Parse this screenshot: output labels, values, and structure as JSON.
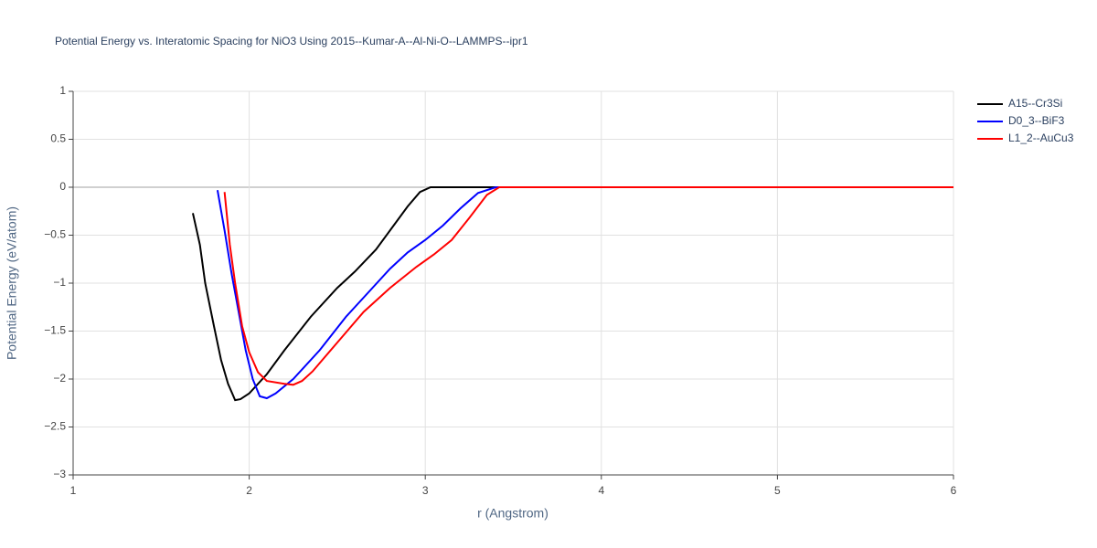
{
  "chart_data": {
    "type": "line",
    "title": "Potential Energy vs. Interatomic Spacing for NiO3 Using 2015--Kumar-A--Al-Ni-O--LAMMPS--ipr1",
    "x_label": "r (Angstrom)",
    "y_label": "Potential Energy (eV/atom)",
    "xlim": [
      1,
      6
    ],
    "ylim": [
      -3,
      1
    ],
    "xticks": [
      1,
      2,
      3,
      4,
      5,
      6
    ],
    "yticks": [
      {
        "value": -3,
        "label": "−3"
      },
      {
        "value": -2.5,
        "label": "−2.5"
      },
      {
        "value": -2,
        "label": "−2"
      },
      {
        "value": -1.5,
        "label": "−1.5"
      },
      {
        "value": -1,
        "label": "−1"
      },
      {
        "value": -0.5,
        "label": "−0.5"
      },
      0,
      0.5,
      1
    ],
    "grid": true,
    "legend": "right",
    "series": [
      {
        "name": "A15--Cr3Si",
        "color": "#000000",
        "x": [
          1.68,
          1.72,
          1.75,
          1.8,
          1.84,
          1.88,
          1.92,
          1.95,
          2.0,
          2.1,
          2.2,
          2.35,
          2.5,
          2.6,
          2.72,
          2.8,
          2.9,
          2.97,
          3.03,
          3.2,
          6
        ],
        "values": [
          -0.27,
          -0.6,
          -1.0,
          -1.45,
          -1.8,
          -2.05,
          -2.22,
          -2.21,
          -2.15,
          -1.95,
          -1.7,
          -1.35,
          -1.05,
          -0.88,
          -0.65,
          -0.45,
          -0.2,
          -0.05,
          0,
          0,
          0
        ]
      },
      {
        "name": "D0_3--BiF3",
        "color": "#0000ff",
        "x": [
          1.82,
          1.86,
          1.9,
          1.94,
          1.98,
          2.02,
          2.06,
          2.1,
          2.15,
          2.25,
          2.4,
          2.55,
          2.7,
          2.8,
          2.9,
          3.0,
          3.1,
          3.2,
          3.3,
          3.4,
          6
        ],
        "values": [
          -0.03,
          -0.45,
          -0.9,
          -1.3,
          -1.7,
          -2.0,
          -2.18,
          -2.2,
          -2.15,
          -2.0,
          -1.7,
          -1.35,
          -1.05,
          -0.85,
          -0.68,
          -0.55,
          -0.4,
          -0.22,
          -0.06,
          0,
          0
        ]
      },
      {
        "name": "L1_2--AuCu3",
        "color": "#ff0000",
        "x": [
          1.86,
          1.89,
          1.92,
          1.96,
          2.0,
          2.05,
          2.1,
          2.2,
          2.25,
          2.3,
          2.36,
          2.5,
          2.65,
          2.8,
          2.95,
          3.05,
          3.15,
          3.25,
          3.35,
          3.42,
          6
        ],
        "values": [
          -0.05,
          -0.6,
          -1.0,
          -1.45,
          -1.72,
          -1.93,
          -2.02,
          -2.05,
          -2.06,
          -2.02,
          -1.92,
          -1.62,
          -1.3,
          -1.05,
          -0.83,
          -0.7,
          -0.55,
          -0.32,
          -0.08,
          0,
          0
        ]
      }
    ]
  }
}
